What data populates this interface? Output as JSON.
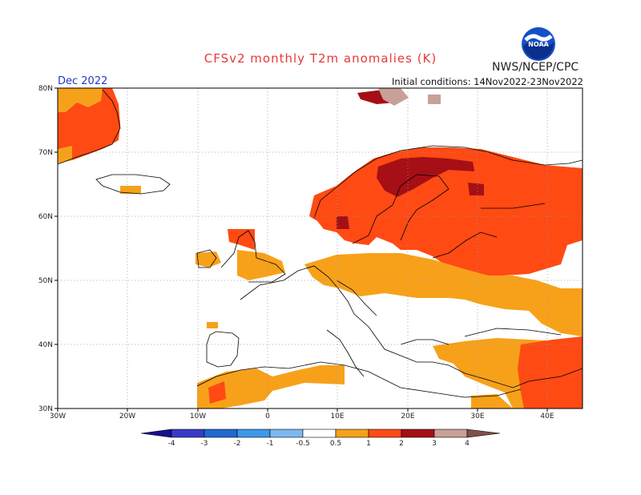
{
  "title": "CFSv2 monthly T2m anomalies (K)",
  "agency": "NWS/NCEP/CPC",
  "logo_text": "NOAA",
  "month_label": "Dec 2022",
  "initial_conditions": "Initial conditions: 14Nov2022-23Nov2022",
  "map": {
    "lon_range": [
      -30,
      45
    ],
    "lat_range": [
      30,
      80
    ],
    "lat_ticks": [
      "30N",
      "40N",
      "50N",
      "60N",
      "70N",
      "80N"
    ],
    "lon_ticks": [
      "30W",
      "20W",
      "10W",
      "0",
      "10E",
      "20E",
      "30E",
      "40E"
    ],
    "grid": true,
    "grid_style": "dotted"
  },
  "colorbar": {
    "labels": [
      "-4",
      "-3",
      "-2",
      "-1",
      "-0.5",
      "0.5",
      "1",
      "2",
      "3",
      "4"
    ],
    "colors": [
      "#1a0f8c",
      "#3a3ac8",
      "#1f6ad0",
      "#3d98e8",
      "#7cb8f0",
      "#ffffff",
      "#f7a11a",
      "#ff4a14",
      "#a50f15",
      "#c8a097",
      "#7f5048"
    ]
  },
  "anomaly_categories": [
    {
      "range": "0.5-1",
      "color": "#f7a11a"
    },
    {
      "range": "1-2",
      "color": "#ff4a14"
    },
    {
      "range": "2-3",
      "color": "#a50f15"
    },
    {
      "range": "3-4",
      "color": "#c8a097"
    }
  ]
}
